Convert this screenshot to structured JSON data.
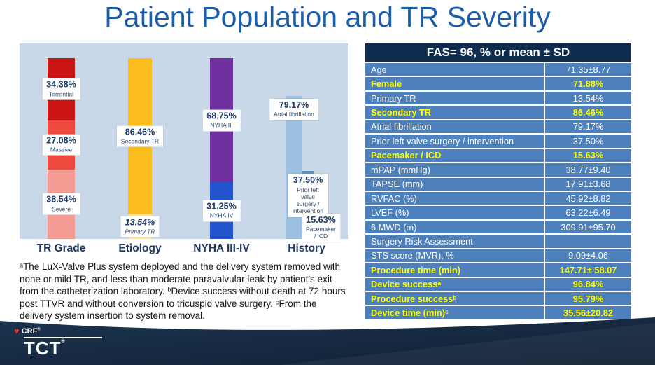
{
  "slide": {
    "title": "Patient Population and TR Severity",
    "footnote": "ᵃThe LuX-Valve Plus system deployed and the delivery system removed with none or mild TR, and less than moderate paravalvular leak by patient's exit from the catheterization laboratory. ᵇDevice success without death at 72 hours post TTVR and without conversion to tricuspid valve surgery. ᶜFrom the delivery system insertion to system removal.",
    "logo": {
      "crf": "CRF",
      "tct": "TCT",
      "reg": "®"
    }
  },
  "chart_data": {
    "type": "bar",
    "subtype": "vertical percent bars (stacked and grouped)",
    "unit": "%",
    "ylim": [
      0,
      100
    ],
    "grid": false,
    "legend": "labels on bars",
    "groups": [
      {
        "category": "TR Grade",
        "mode": "stacked",
        "segments": [
          {
            "label": "Torrential",
            "value": 34.38,
            "display": "34.38%",
            "color": "#cb1414"
          },
          {
            "label": "Massive",
            "value": 27.08,
            "display": "27.08%",
            "color": "#ef4a3d"
          },
          {
            "label": "Severe",
            "value": 38.54,
            "display": "38.54%",
            "color": "#f49b92"
          }
        ]
      },
      {
        "category": "Etiology",
        "mode": "stacked",
        "segments": [
          {
            "label": "Secondary TR",
            "value": 86.46,
            "display": "86.46%",
            "color": "#fbbc1e"
          },
          {
            "label": "Primary TR",
            "value": 13.54,
            "display": "13.54%",
            "color": "#fce09a",
            "italic": true
          }
        ]
      },
      {
        "category": "NYHA III-IV",
        "mode": "stacked",
        "segments": [
          {
            "label": "NYHA III",
            "value": 68.75,
            "display": "68.75%",
            "color": "#7030a0"
          },
          {
            "label": "NYHA IV",
            "value": 31.25,
            "display": "31.25%",
            "color": "#2353cd"
          }
        ]
      },
      {
        "category": "History",
        "mode": "grouped",
        "segments": [
          {
            "label": "Atrial fibrillation",
            "value": 79.17,
            "display": "79.17%",
            "color": "#9cc0df"
          },
          {
            "label": "Prior left valve surgery / intervention",
            "value": 37.5,
            "display": "37.50%",
            "color": "#6094c4"
          },
          {
            "label": "Pacemaker / ICD",
            "value": 15.63,
            "display": "15.63%",
            "color": "#4b5b6a"
          }
        ]
      }
    ]
  },
  "table": {
    "header": "FAS= 96, % or mean ± SD",
    "highlight_color": "#ffff00",
    "rows": [
      {
        "label": "Age",
        "value": "71.35±8.77",
        "highlight": false
      },
      {
        "label": "Female",
        "value": "71.88%",
        "highlight": true
      },
      {
        "label": "Primary TR",
        "value": "13.54%",
        "highlight": false
      },
      {
        "label": "Secondary TR",
        "value": "86.46%",
        "highlight": true
      },
      {
        "label": "Atrial fibrillation",
        "value": "79.17%",
        "highlight": false
      },
      {
        "label": "Prior left valve surgery / intervention",
        "value": "37.50%",
        "highlight": false
      },
      {
        "label": "Pacemaker / ICD",
        "value": "15.63%",
        "highlight": true
      },
      {
        "label": "mPAP (mmHg)",
        "value": "38.77±9.40",
        "highlight": false
      },
      {
        "label": "TAPSE (mm)",
        "value": "17.91±3.68",
        "highlight": false
      },
      {
        "label": "RVFAC (%)",
        "value": "45.92±8.82",
        "highlight": false
      },
      {
        "label": "LVEF (%)",
        "value": "63.22±6.49",
        "highlight": false
      },
      {
        "label": "6 MWD (m)",
        "value": "309.91±95.70",
        "highlight": false
      },
      {
        "label": "Surgery Risk Assessment",
        "value": "",
        "highlight": false
      },
      {
        "label": "STS score (MVR), %",
        "value": "9.09±4.06",
        "highlight": false
      },
      {
        "label": "Procedure time (min)",
        "value": "147.71± 58.07",
        "highlight": true
      },
      {
        "label": "Device successᵃ",
        "value": "96.84%",
        "highlight": true
      },
      {
        "label": "Procedure successᵇ",
        "value": "95.79%",
        "highlight": true
      },
      {
        "label": "Device time (min)ᶜ",
        "value": "35.56±20.82",
        "highlight": true
      }
    ]
  }
}
